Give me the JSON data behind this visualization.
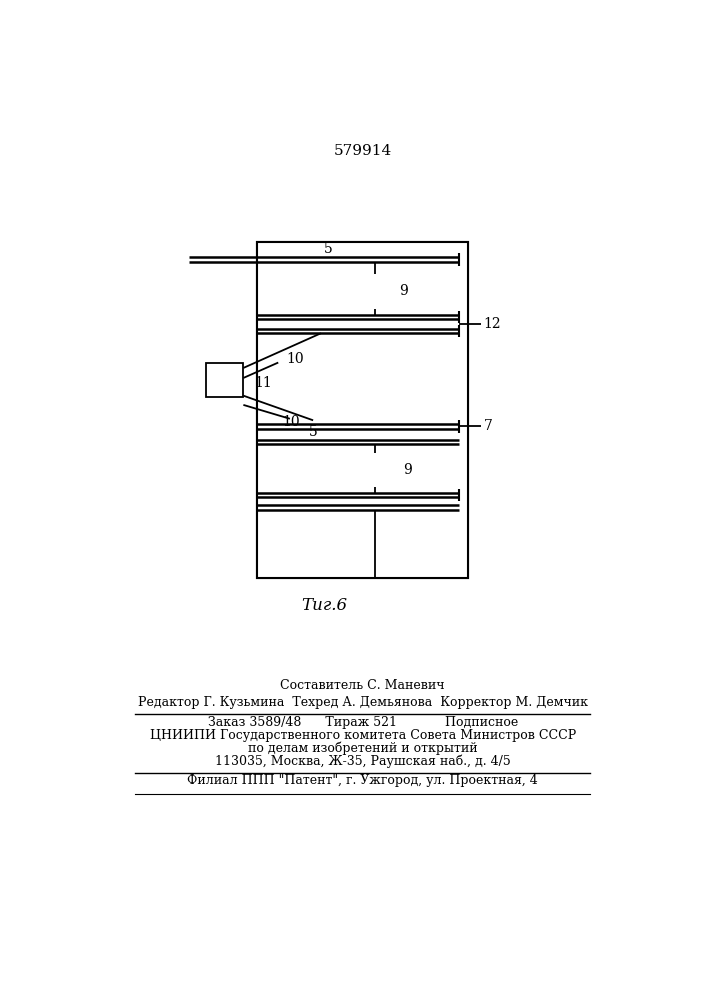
{
  "title": "579914",
  "fig_label": "Τиг.6",
  "bg_color": "#ffffff",
  "line_color": "#000000",
  "footer_lines": [
    "Составитель С. Маневич",
    "Редактор Г. Кузьмина  Техред А. Демьянова  Корректор М. Демчик",
    "Заказ 3589/48      Тираж 521            Подписное",
    "ЦНИИПИ Государственного комитета Совета Министров СССР",
    "по делам изобретений и открытий",
    "113035, Москва, Ж-35, Раушская наб., д. 4/5",
    "Филиал ППП \"Патент\", г. Ужгород, ул. Проектная, 4"
  ]
}
